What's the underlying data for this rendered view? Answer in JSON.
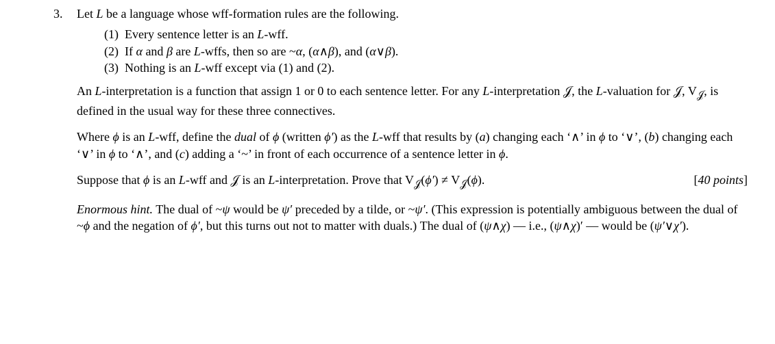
{
  "question_number": "3.",
  "stem": "Let L be a language whose wff-formation rules are the following.",
  "rule1": "(1)  Every sentence letter is an L-wff.",
  "rule2": "(2)  If α and β are L-wffs, then so are ~α, (α∧β), and (α∨β).",
  "rule3": "(3)  Nothing is an L-wff except via (1) and (2).",
  "para_interp": "An L-interpretation is a function that assign 1 or 0 to each sentence letter. For any L-interpretation 𝒥, the L-valuation for 𝒥, V𝒥, is defined in the usual way for these three connectives.",
  "para_dual": "Where ϕ is an L-wff, define the dual of ϕ (written ϕ′) as the L-wff that results by (a) changing each ‘∧’ in ϕ to ‘∨’, (b) changing each ‘∨’ in ϕ to ‘∧’, and (c) adding a ‘~’ in front of each occurrence of a sentence letter in ϕ.",
  "para_prove": "Suppose that ϕ is an L-wff and 𝒥 is an L-interpretation. Prove that V𝒥(ϕ′) ≠ V𝒥(ϕ).",
  "points": "[40 points]",
  "hint_label": "Enormous hint.",
  "hint_body": " The dual of ~ψ would be ψ′ preceded by a tilde, or ~ψ′. (This expression is potentially ambiguous between the dual of ~ϕ and the negation of ϕ′, but this turns out not to matter with duals.) The dual of (ψ∧χ) — i.e., (ψ∧χ)′ — would be (ψ′∨χ′)."
}
